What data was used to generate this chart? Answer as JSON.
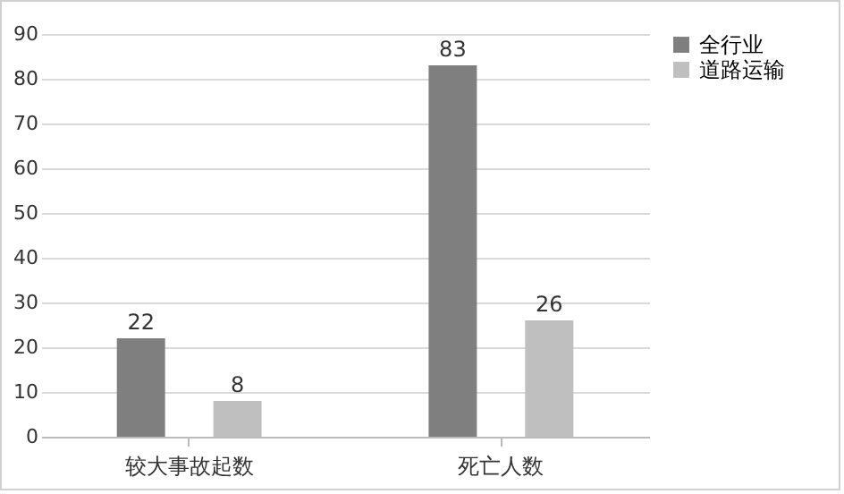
{
  "chart_data": {
    "type": "bar",
    "categories": [
      "较大事故起数",
      "死亡人数"
    ],
    "series": [
      {
        "name": "全行业",
        "color": "#7f7f7f",
        "values": [
          22,
          83
        ]
      },
      {
        "name": "道路运输",
        "color": "#bfbfbf",
        "values": [
          8,
          26
        ]
      }
    ],
    "ylim": [
      0,
      90
    ],
    "yticks": [
      0,
      10,
      20,
      30,
      40,
      50,
      60,
      70,
      80,
      90
    ],
    "grid": "y",
    "legend": "right",
    "data_labels": true
  }
}
